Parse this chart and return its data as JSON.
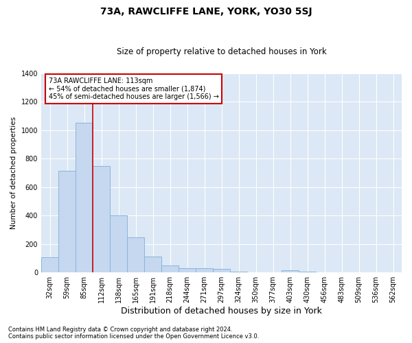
{
  "title": "73A, RAWCLIFFE LANE, YORK, YO30 5SJ",
  "subtitle": "Size of property relative to detached houses in York",
  "xlabel": "Distribution of detached houses by size in York",
  "ylabel": "Number of detached properties",
  "footnote1": "Contains HM Land Registry data © Crown copyright and database right 2024.",
  "footnote2": "Contains public sector information licensed under the Open Government Licence v3.0.",
  "bar_labels": [
    "32sqm",
    "59sqm",
    "85sqm",
    "112sqm",
    "138sqm",
    "165sqm",
    "191sqm",
    "218sqm",
    "244sqm",
    "271sqm",
    "297sqm",
    "324sqm",
    "350sqm",
    "377sqm",
    "403sqm",
    "430sqm",
    "456sqm",
    "483sqm",
    "509sqm",
    "536sqm",
    "562sqm"
  ],
  "bar_values": [
    105,
    715,
    1050,
    750,
    400,
    245,
    110,
    50,
    30,
    30,
    25,
    5,
    0,
    0,
    15,
    5,
    0,
    0,
    0,
    0,
    0
  ],
  "bar_color": "#c5d8f0",
  "bar_edge_color": "#8ab4d8",
  "background_color": "#dce8f5",
  "grid_color": "#ffffff",
  "vline_color": "#cc0000",
  "vline_x": 3,
  "annotation_text": "73A RAWCLIFFE LANE: 113sqm\n← 54% of detached houses are smaller (1,874)\n45% of semi-detached houses are larger (1,566) →",
  "annotation_box_color": "#ffffff",
  "annotation_box_edge": "#cc0000",
  "ylim": [
    0,
    1400
  ],
  "yticks": [
    0,
    200,
    400,
    600,
    800,
    1000,
    1200,
    1400
  ],
  "title_fontsize": 10,
  "subtitle_fontsize": 8.5,
  "xlabel_fontsize": 9,
  "ylabel_fontsize": 7.5,
  "tick_fontsize": 7,
  "annotation_fontsize": 7,
  "footnote_fontsize": 6
}
